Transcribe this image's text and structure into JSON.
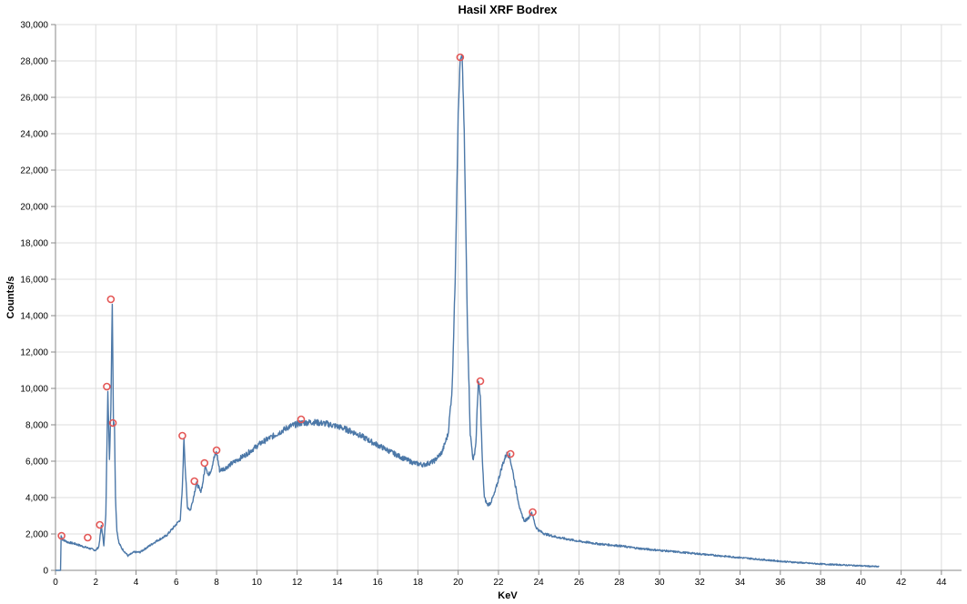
{
  "chart_data": {
    "type": "line",
    "title": "Hasil XRF Bodrex",
    "xlabel": "KeV",
    "ylabel": "Counts/s",
    "xlim": [
      0,
      45
    ],
    "ylim": [
      0,
      30000
    ],
    "grid": true,
    "x_ticks": [
      0,
      2,
      4,
      6,
      8,
      10,
      12,
      14,
      16,
      18,
      20,
      22,
      24,
      26,
      28,
      30,
      32,
      34,
      36,
      38,
      40,
      42,
      44
    ],
    "x_tick_labels": [
      "0",
      "2",
      "4",
      "6",
      "8",
      "10",
      "12",
      "14",
      "16",
      "18",
      "20",
      "22",
      "24",
      "26",
      "28",
      "30",
      "32",
      "34",
      "36",
      "38",
      "40",
      "42",
      "44"
    ],
    "y_ticks": [
      0,
      2000,
      4000,
      6000,
      8000,
      10000,
      12000,
      14000,
      16000,
      18000,
      20000,
      22000,
      24000,
      26000,
      28000,
      30000
    ],
    "y_tick_labels": [
      "0",
      "2,000",
      "4,000",
      "6,000",
      "8,000",
      "10,000",
      "12,000",
      "14,000",
      "16,000",
      "18,000",
      "20,000",
      "22,000",
      "24,000",
      "26,000",
      "28,000",
      "30,000"
    ],
    "series": [
      {
        "name": "spectrum",
        "color": "#4c78a8",
        "x": [
          0.0,
          0.25,
          0.28,
          0.35,
          0.6,
          1.0,
          1.4,
          1.7,
          1.85,
          2.0,
          2.15,
          2.28,
          2.4,
          2.5,
          2.6,
          2.68,
          2.75,
          2.82,
          2.88,
          2.93,
          2.98,
          3.05,
          3.15,
          3.3,
          3.6,
          3.9,
          4.2,
          4.6,
          5.0,
          5.5,
          5.9,
          6.2,
          6.3,
          6.38,
          6.45,
          6.55,
          6.7,
          6.85,
          7.0,
          7.1,
          7.2,
          7.3,
          7.45,
          7.6,
          7.75,
          7.85,
          8.0,
          8.15,
          8.4,
          8.8,
          9.5,
          10.2,
          11.0,
          11.6,
          12.2,
          12.8,
          13.5,
          14.2,
          15.0,
          15.8,
          16.5,
          17.2,
          17.8,
          18.3,
          18.8,
          19.2,
          19.5,
          19.7,
          19.85,
          20.0,
          20.1,
          20.2,
          20.3,
          20.45,
          20.6,
          20.75,
          20.88,
          21.0,
          21.1,
          21.2,
          21.3,
          21.45,
          21.6,
          21.8,
          22.0,
          22.2,
          22.4,
          22.55,
          22.7,
          22.9,
          23.1,
          23.3,
          23.5,
          23.65,
          23.75,
          23.85,
          24.0,
          24.3,
          25.0,
          26.0,
          27.0,
          28.0,
          29.0,
          30.0,
          31.0,
          32.0,
          33.0,
          34.0,
          35.0,
          36.0,
          37.0,
          38.0,
          39.0,
          40.0,
          40.9
        ],
        "values": [
          0,
          0,
          1900,
          1700,
          1550,
          1450,
          1300,
          1200,
          1150,
          1100,
          1300,
          2450,
          1400,
          3000,
          10000,
          6000,
          9000,
          14800,
          8000,
          8100,
          4000,
          2200,
          1500,
          1200,
          800,
          1000,
          1000,
          1300,
          1600,
          1900,
          2400,
          2800,
          4500,
          7300,
          5500,
          3500,
          3300,
          4000,
          4800,
          4600,
          4300,
          4700,
          5800,
          5200,
          5600,
          6100,
          6500,
          5500,
          5600,
          5900,
          6400,
          7000,
          7500,
          7900,
          8100,
          8150,
          8050,
          7850,
          7500,
          7000,
          6600,
          6200,
          5900,
          5800,
          6000,
          6500,
          7500,
          10000,
          16000,
          25000,
          28000,
          28200,
          24000,
          14000,
          7500,
          6000,
          7000,
          10400,
          9500,
          6000,
          4000,
          3600,
          3700,
          4200,
          5000,
          5800,
          6400,
          6300,
          5500,
          4300,
          3200,
          2700,
          2900,
          3200,
          2800,
          2400,
          2200,
          2000,
          1800,
          1600,
          1450,
          1350,
          1200,
          1100,
          1000,
          900,
          800,
          700,
          600,
          500,
          420,
          350,
          300,
          250,
          200
        ]
      }
    ],
    "peaks": {
      "x": [
        0.3,
        1.6,
        2.2,
        2.55,
        2.75,
        2.85,
        6.3,
        6.9,
        7.4,
        8.0,
        12.2,
        20.1,
        21.1,
        22.6,
        23.7
      ],
      "y": [
        1900,
        1800,
        2500,
        10100,
        14900,
        8100,
        7400,
        4900,
        5900,
        6600,
        8300,
        28200,
        10400,
        6400,
        3200
      ],
      "color": "#e45756"
    }
  }
}
